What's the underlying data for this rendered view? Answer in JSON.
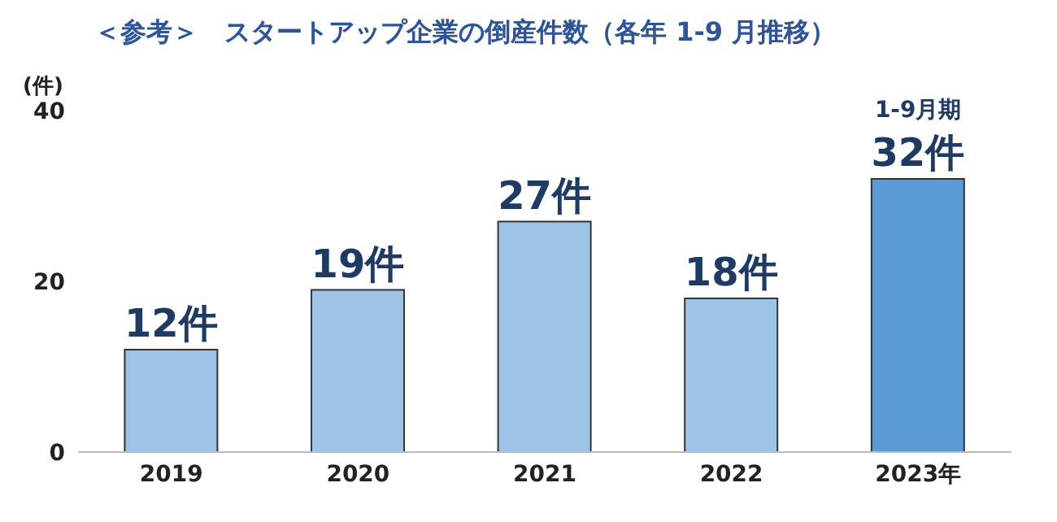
{
  "chart_data": {
    "type": "bar",
    "title": "＜参考＞　スタートアップ企業の倒産件数（各年 1-9 月推移）",
    "ylabel": "(件)",
    "categories": [
      "2019",
      "2020",
      "2021",
      "2022",
      "2023年"
    ],
    "values": [
      12,
      19,
      27,
      18,
      32
    ],
    "colors": [
      "#9dc3e6",
      "#9dc3e6",
      "#9dc3e6",
      "#9dc3e6",
      "#5b9bd5"
    ],
    "value_labels": [
      "12件",
      "19件",
      "27件",
      "18件",
      "32件"
    ],
    "annotations": [
      {
        "text": "1-9月期",
        "x": "2023年",
        "y": 32
      }
    ],
    "ylim": [
      0,
      40
    ],
    "yticks": [
      0,
      20,
      40
    ]
  }
}
